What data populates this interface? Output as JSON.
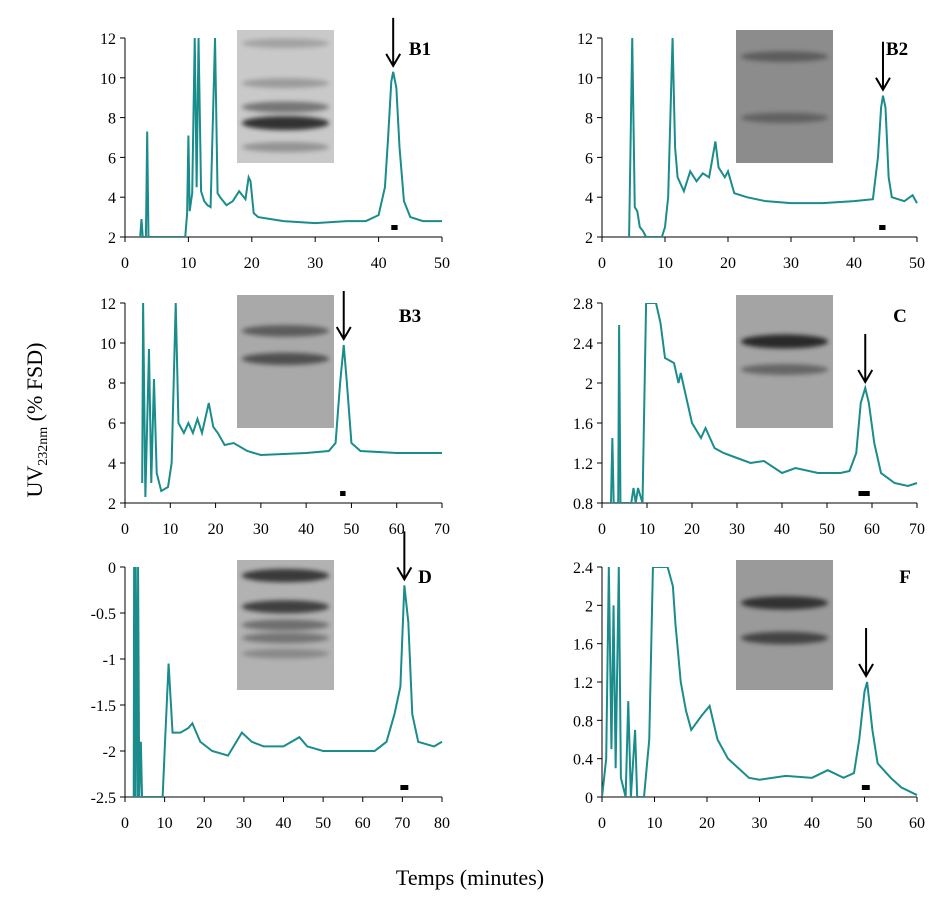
{
  "ylabel": [
    "UV",
    "232nm",
    " (% FSD)"
  ],
  "xlabel": "Temps (minutes)",
  "chart_data": [
    {
      "type": "line",
      "title": "B1",
      "xlim": [
        0,
        50
      ],
      "xticks": [
        0,
        10,
        20,
        30,
        40,
        50
      ],
      "ylim": [
        2,
        12
      ],
      "yticks": [
        2,
        4,
        6,
        8,
        10,
        12
      ],
      "series": [
        {
          "color": "#1a8c8c",
          "x": [
            2.4,
            2.6,
            2.8,
            3.0,
            3.3,
            3.5,
            3.7,
            4,
            9.5,
            9.8,
            10.0,
            10.2,
            10.6,
            11,
            11.3,
            11.6,
            12,
            12.5,
            13,
            13.5,
            14.2,
            14.6,
            15,
            16,
            17,
            18,
            19,
            19.5,
            19.8,
            20.3,
            21,
            23,
            25,
            30,
            35,
            38,
            40,
            41,
            41.5,
            42,
            42.3,
            42.8,
            43.3,
            44,
            45,
            47,
            50
          ],
          "values": [
            2,
            2.9,
            2,
            2,
            2,
            7.3,
            2,
            2,
            2,
            3.2,
            7.1,
            3.3,
            4.2,
            12,
            4.5,
            12,
            4.3,
            3.8,
            3.6,
            3.5,
            12,
            4.2,
            4,
            3.6,
            3.8,
            4.3,
            3.9,
            5,
            4.8,
            3.2,
            3,
            2.9,
            2.8,
            2.7,
            2.8,
            2.8,
            3.1,
            4.5,
            7,
            9.8,
            10.3,
            9.5,
            6.5,
            3.8,
            3,
            2.8,
            2.8
          ]
        }
      ],
      "arrow": {
        "x": 42.3
      },
      "fraction": [
        42,
        43
      ]
    },
    {
      "type": "line",
      "title": "B2",
      "xlim": [
        0,
        50
      ],
      "xticks": [
        0,
        10,
        20,
        30,
        40,
        50
      ],
      "ylim": [
        2,
        12
      ],
      "yticks": [
        2,
        4,
        6,
        8,
        10,
        12
      ],
      "series": [
        {
          "color": "#1a8c8c",
          "x": [
            4.3,
            4.8,
            5.2,
            5.6,
            6,
            6.5,
            7,
            9.5,
            10,
            10.5,
            11.2,
            11.6,
            12,
            13,
            14,
            15,
            16,
            17,
            18,
            18.5,
            19.5,
            20,
            21,
            23,
            26,
            30,
            35,
            40,
            43,
            43.8,
            44.3,
            44.6,
            45,
            45.5,
            46,
            48,
            49.3,
            50
          ],
          "values": [
            2,
            12,
            3.5,
            3.3,
            2.5,
            2.3,
            2,
            2,
            2.5,
            4,
            12,
            6.5,
            5,
            4.3,
            5.3,
            4.8,
            5.2,
            5,
            6.8,
            5.5,
            5,
            5.3,
            4.2,
            4,
            3.8,
            3.7,
            3.7,
            3.8,
            3.9,
            6,
            8.5,
            9.1,
            8.5,
            5,
            4,
            3.8,
            4.1,
            3.7
          ]
        }
      ],
      "arrow": {
        "x": 44.6
      },
      "fraction": [
        44,
        45
      ]
    },
    {
      "type": "line",
      "title": "B3",
      "xlim": [
        0,
        70
      ],
      "xticks": [
        0,
        10,
        20,
        30,
        40,
        50,
        60,
        70
      ],
      "ylim": [
        2,
        12
      ],
      "yticks": [
        2,
        4,
        6,
        8,
        10,
        12
      ],
      "series": [
        {
          "color": "#1a8c8c",
          "x": [
            3.8,
            4,
            4.5,
            5.3,
            5.8,
            6.4,
            7,
            8,
            9.5,
            10.3,
            11.2,
            11.8,
            13,
            14,
            15,
            16,
            17,
            18.5,
            19.5,
            20.5,
            22,
            24,
            27,
            30,
            40,
            45,
            46.5,
            47.5,
            48.3,
            49,
            50,
            52,
            60,
            70
          ],
          "values": [
            3,
            12,
            2.3,
            9.7,
            3,
            8.2,
            3.5,
            2.6,
            2.8,
            4,
            12,
            6,
            5.5,
            6,
            5.5,
            6.2,
            5.5,
            7,
            5.8,
            5.5,
            4.9,
            5,
            4.6,
            4.4,
            4.5,
            4.6,
            5,
            8,
            9.9,
            8,
            5,
            4.6,
            4.5,
            4.5
          ]
        }
      ],
      "arrow": {
        "x": 48.3
      },
      "fraction": [
        47.5,
        48.7
      ]
    },
    {
      "type": "line",
      "title": "C",
      "xlim": [
        0,
        70
      ],
      "xticks": [
        0,
        10,
        20,
        30,
        40,
        50,
        60,
        70
      ],
      "ylim": [
        0.8,
        2.8
      ],
      "yticks": [
        0.8,
        1.2,
        1.6,
        2,
        2.4,
        2.8
      ],
      "series": [
        {
          "color": "#1a8c8c",
          "x": [
            2,
            2.3,
            2.6,
            3.6,
            3.8,
            4.1,
            6.5,
            7,
            7.5,
            8,
            9,
            9.8,
            12,
            13,
            14,
            16,
            17,
            17.5,
            19,
            20,
            22,
            23,
            25,
            27,
            30,
            33,
            36,
            40,
            43,
            48,
            53,
            55,
            56.5,
            57.5,
            58.5,
            59.3,
            60.5,
            62,
            65,
            68,
            70
          ],
          "values": [
            0.8,
            1.45,
            0.8,
            0.8,
            2.58,
            0.8,
            0.8,
            0.95,
            0.8,
            0.95,
            0.8,
            2.8,
            2.8,
            2.6,
            2.25,
            2.2,
            2,
            2.1,
            1.8,
            1.6,
            1.45,
            1.55,
            1.35,
            1.3,
            1.25,
            1.2,
            1.22,
            1.1,
            1.15,
            1.1,
            1.1,
            1.12,
            1.3,
            1.8,
            1.95,
            1.8,
            1.4,
            1.1,
            1,
            0.97,
            1
          ]
        }
      ],
      "arrow": {
        "x": 58.5
      },
      "fraction": [
        57,
        59.5
      ]
    },
    {
      "type": "line",
      "title": "D",
      "xlim": [
        0,
        80
      ],
      "xticks": [
        0,
        10,
        20,
        30,
        40,
        50,
        60,
        70,
        80
      ],
      "ylim": [
        -2.5,
        0
      ],
      "yticks": [
        -2.5,
        -2,
        -1.5,
        -1,
        -0.5,
        0
      ],
      "series": [
        {
          "color": "#1a8c8c",
          "x": [
            2.2,
            2.3,
            2.6,
            2.7,
            3.2,
            3.3,
            3.6,
            4,
            4.3,
            9.5,
            10,
            11,
            12,
            14,
            16,
            17,
            19,
            22,
            26,
            29.5,
            32,
            35,
            40,
            44,
            46,
            50,
            55,
            60,
            63,
            66,
            68,
            69.5,
            70.5,
            71.5,
            72.5,
            74,
            78,
            80
          ],
          "values": [
            -2.5,
            0,
            -2.5,
            0,
            -2.5,
            0,
            -2.5,
            -1.9,
            -2.5,
            -2.5,
            -2,
            -1.05,
            -1.8,
            -1.8,
            -1.75,
            -1.7,
            -1.9,
            -2,
            -2.05,
            -1.8,
            -1.9,
            -1.95,
            -1.95,
            -1.85,
            -1.95,
            -2,
            -2,
            -2,
            -2,
            -1.9,
            -1.6,
            -1.3,
            -0.2,
            -0.6,
            -1.6,
            -1.9,
            -1.95,
            -1.9
          ]
        }
      ],
      "arrow": {
        "x": 70.5
      },
      "fraction": [
        69.5,
        71.5
      ]
    },
    {
      "type": "line",
      "title": "F",
      "xlim": [
        0,
        60
      ],
      "xticks": [
        0,
        10,
        20,
        30,
        40,
        50,
        60
      ],
      "ylim": [
        0,
        2.4
      ],
      "yticks": [
        0,
        0.4,
        0.8,
        1.2,
        1.6,
        2,
        2.4
      ],
      "series": [
        {
          "color": "#1a8c8c",
          "x": [
            0,
            0.8,
            1.3,
            1.8,
            2.2,
            2.6,
            3.2,
            3.6,
            4.5,
            5,
            5.5,
            6.3,
            6.7,
            8,
            9,
            9.7,
            12.5,
            13.5,
            14,
            15,
            16,
            17,
            19,
            20.5,
            22,
            24,
            26,
            28,
            30,
            35,
            40,
            43,
            46,
            48,
            49,
            50,
            50.5,
            51.5,
            52.5,
            55,
            57,
            60
          ],
          "values": [
            0,
            0.4,
            2.4,
            0.5,
            2,
            0.3,
            2.4,
            0.2,
            0,
            1,
            0,
            0.7,
            0,
            0,
            0.6,
            2.4,
            2.4,
            2.2,
            1.8,
            1.2,
            0.9,
            0.7,
            0.85,
            0.95,
            0.6,
            0.4,
            0.3,
            0.2,
            0.18,
            0.22,
            0.2,
            0.28,
            0.2,
            0.25,
            0.6,
            1.1,
            1.2,
            0.7,
            0.35,
            0.2,
            0.1,
            0.02
          ]
        }
      ],
      "arrow": {
        "x": 50.3
      },
      "fraction": [
        49.5,
        51
      ]
    }
  ]
}
